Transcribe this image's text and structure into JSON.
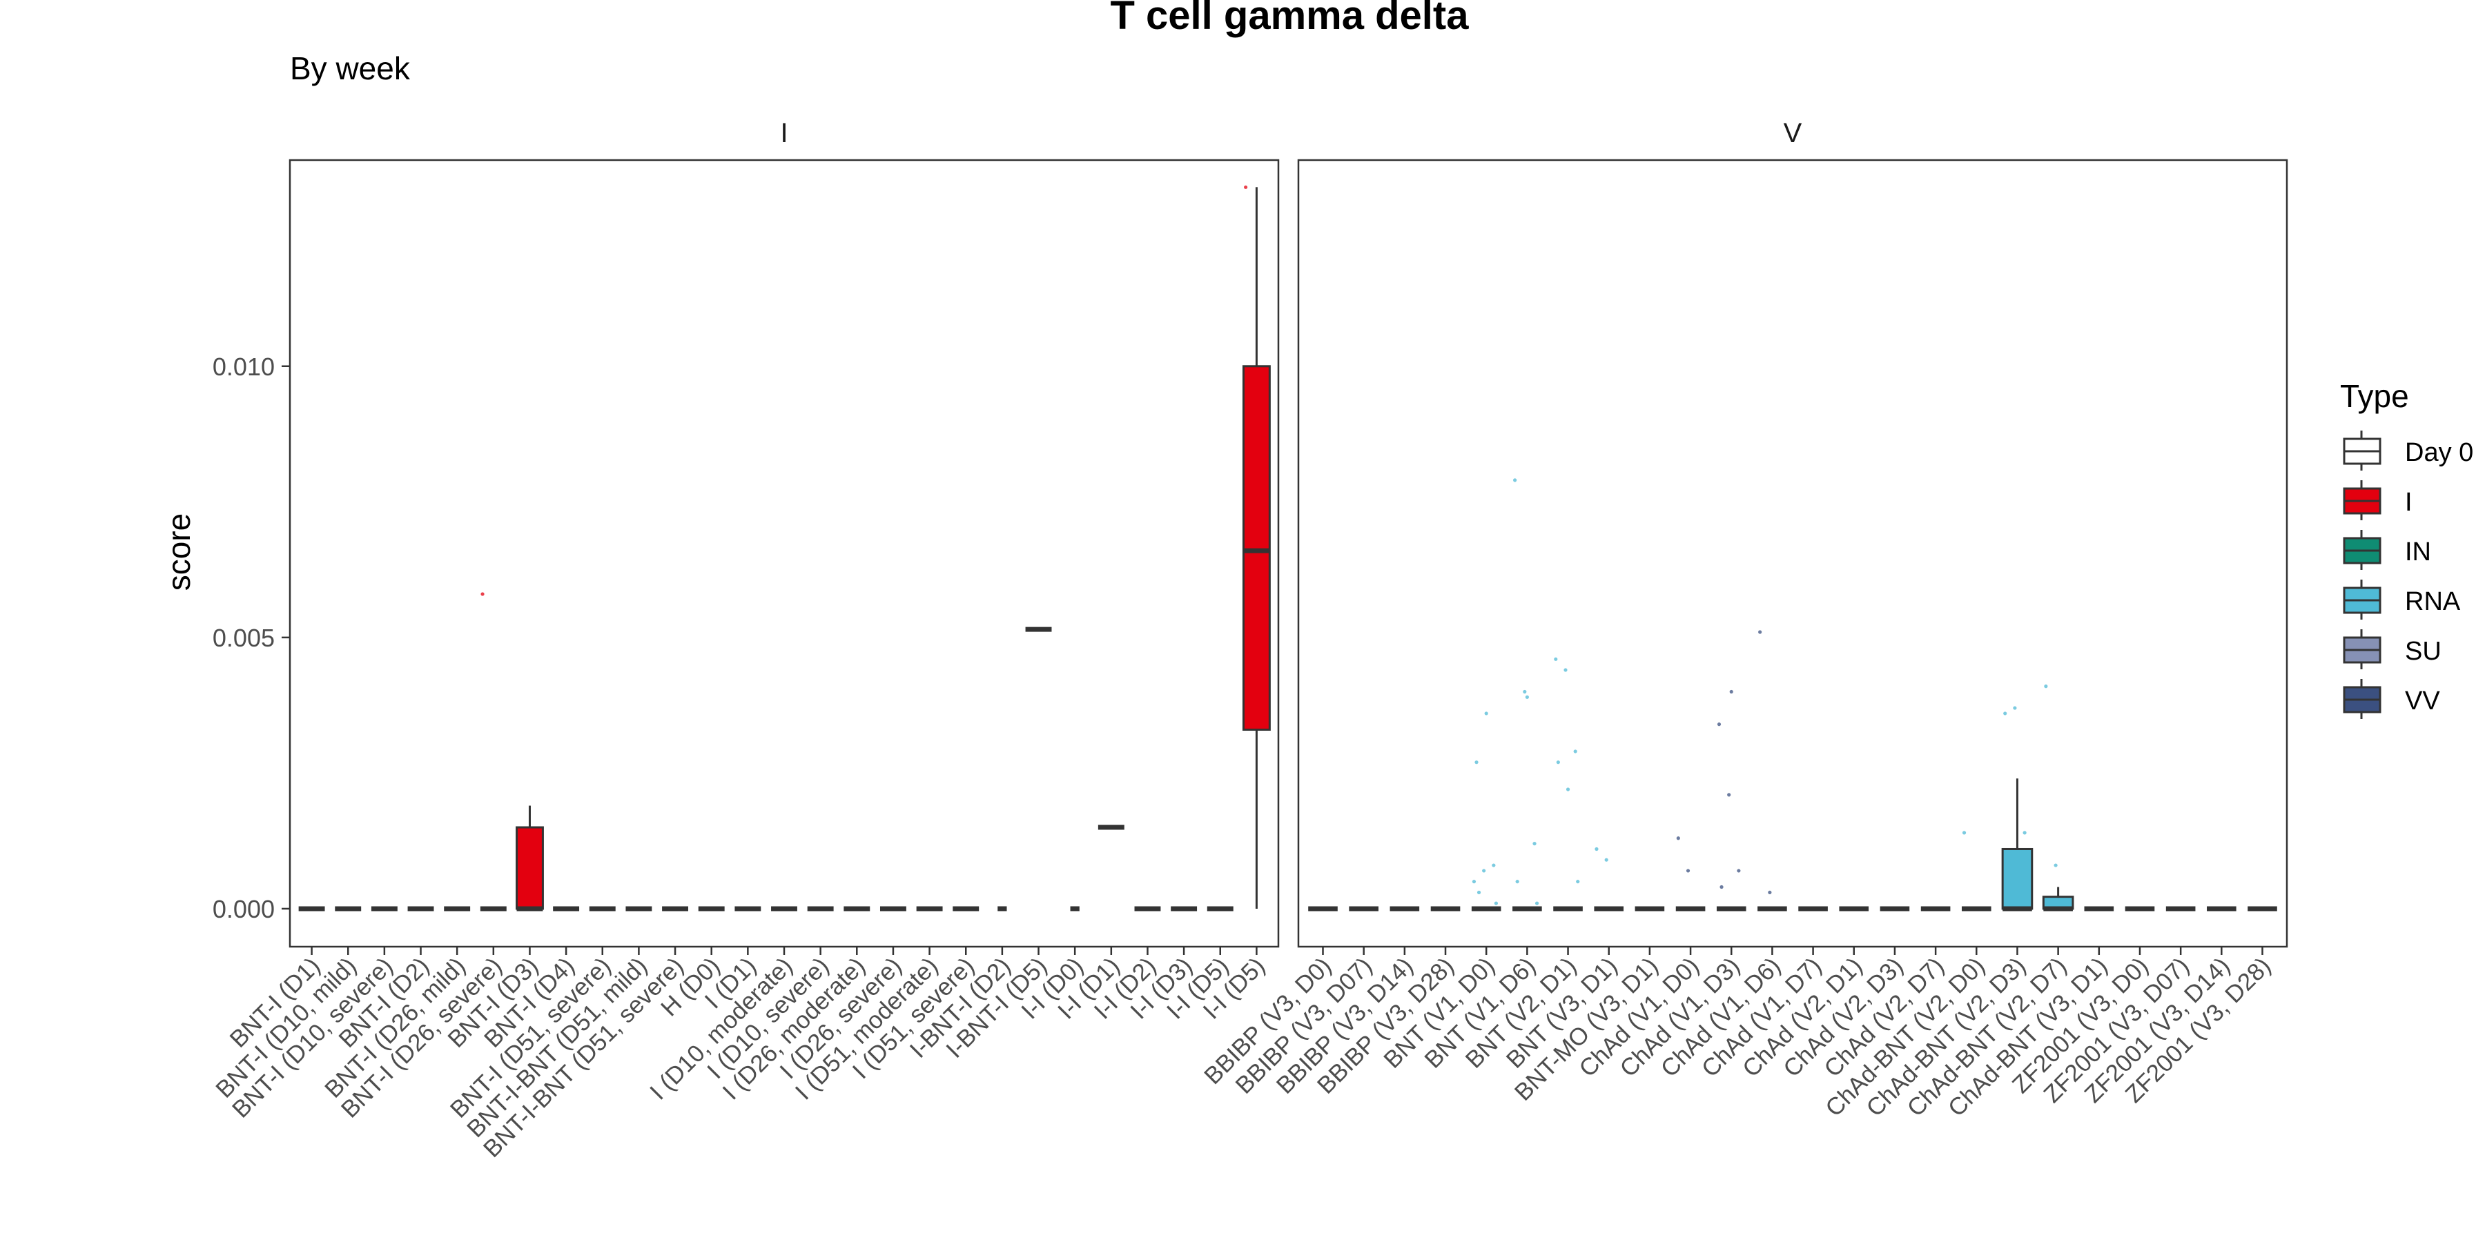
{
  "colors": {
    "Day 0": "#ffffff",
    "I": "#e3000f",
    "IN": "#0f8c73",
    "RNA": "#4fbad6",
    "SU": "#8691b5",
    "VV": "#3b5080"
  },
  "chart_data": {
    "type": "box",
    "title": "T cell gamma delta",
    "subtitle": "By week",
    "ylabel": "score",
    "xlabel": "",
    "ylim": [
      -0.0007,
      0.0138
    ],
    "yticks": [
      0.0,
      0.005,
      0.01
    ],
    "ytick_labels": [
      "0.000",
      "0.005",
      "0.010"
    ],
    "grid": false,
    "legend": {
      "title": "Type",
      "position": "right",
      "entries": [
        "Day 0",
        "I",
        "IN",
        "RNA",
        "SU",
        "VV"
      ]
    },
    "panels": [
      {
        "strip": "I",
        "categories": [
          {
            "label": "BNT-I (D1)",
            "type": "I",
            "q1": 0,
            "median": 0,
            "q3": 0,
            "whisker_low": 0,
            "whisker_high": 0,
            "outliers": []
          },
          {
            "label": "BNT-I (D10, mild)",
            "type": "I",
            "q1": 0,
            "median": 0,
            "q3": 0,
            "whisker_low": 0,
            "whisker_high": 0,
            "outliers": []
          },
          {
            "label": "BNT-I (D10, severe)",
            "type": "I",
            "q1": 0,
            "median": 0,
            "q3": 0,
            "whisker_low": 0,
            "whisker_high": 0,
            "outliers": []
          },
          {
            "label": "BNT-I (D2)",
            "type": "I",
            "q1": 0,
            "median": 0,
            "q3": 0,
            "whisker_low": 0,
            "whisker_high": 0,
            "outliers": []
          },
          {
            "label": "BNT-I (D26, mild)",
            "type": "I",
            "q1": 0,
            "median": 0,
            "q3": 0,
            "whisker_low": 0,
            "whisker_high": 0,
            "outliers": []
          },
          {
            "label": "BNT-I (D26, severe)",
            "type": "I",
            "q1": 0,
            "median": 0,
            "q3": 0,
            "whisker_low": 0,
            "whisker_high": 0,
            "outliers": [
              0.0058
            ]
          },
          {
            "label": "BNT-I (D3)",
            "type": "I",
            "q1": 0,
            "median": 0,
            "q3": 0.0015,
            "whisker_low": 0,
            "whisker_high": 0.0019,
            "outliers": []
          },
          {
            "label": "BNT-I (D4)",
            "type": "I",
            "q1": 0,
            "median": 0,
            "q3": 0,
            "whisker_low": 0,
            "whisker_high": 0,
            "outliers": []
          },
          {
            "label": "BNT-I (D51, severe)",
            "type": "I",
            "q1": 0,
            "median": 0,
            "q3": 0,
            "whisker_low": 0,
            "whisker_high": 0,
            "outliers": []
          },
          {
            "label": "BNT-I-BNT (D51, mild)",
            "type": "I",
            "q1": 0,
            "median": 0,
            "q3": 0,
            "whisker_low": 0,
            "whisker_high": 0,
            "outliers": []
          },
          {
            "label": "BNT-I-BNT (D51, severe)",
            "type": "I",
            "q1": 0,
            "median": 0,
            "q3": 0,
            "whisker_low": 0,
            "whisker_high": 0,
            "outliers": []
          },
          {
            "label": "H (D0)",
            "type": "I",
            "q1": 0,
            "median": 0,
            "q3": 0,
            "whisker_low": 0,
            "whisker_high": 0,
            "outliers": []
          },
          {
            "label": "I (D1)",
            "type": "I",
            "q1": 0,
            "median": 0,
            "q3": 0,
            "whisker_low": 0,
            "whisker_high": 0,
            "outliers": []
          },
          {
            "label": "I (D10, moderate)",
            "type": "I",
            "q1": 0,
            "median": 0,
            "q3": 0,
            "whisker_low": 0,
            "whisker_high": 0,
            "outliers": []
          },
          {
            "label": "I (D10, severe)",
            "type": "I",
            "q1": 0,
            "median": 0,
            "q3": 0,
            "whisker_low": 0,
            "whisker_high": 0,
            "outliers": []
          },
          {
            "label": "I (D26, moderate)",
            "type": "I",
            "q1": 0,
            "median": 0,
            "q3": 0,
            "whisker_low": 0,
            "whisker_high": 0,
            "outliers": []
          },
          {
            "label": "I (D26, severe)",
            "type": "I",
            "q1": 0,
            "median": 0,
            "q3": 0,
            "whisker_low": 0,
            "whisker_high": 0,
            "outliers": []
          },
          {
            "label": "I (D51, moderate)",
            "type": "I",
            "q1": 0,
            "median": 0,
            "q3": 0,
            "whisker_low": 0,
            "whisker_high": 0,
            "outliers": []
          },
          {
            "label": "I (D51, severe)",
            "type": "I",
            "q1": 0,
            "median": 0,
            "q3": 0,
            "whisker_low": 0,
            "whisker_high": 0,
            "outliers": []
          },
          {
            "label": "I-BNT-I (D2)",
            "type": "I",
            "q1": 0,
            "median": 0,
            "q3": 0,
            "whisker_low": 0,
            "whisker_high": 0,
            "outliers": [],
            "short": true
          },
          {
            "label": "I-BNT-I (D5)",
            "type": "I",
            "q1": 0.00515,
            "median": 0.00515,
            "q3": 0.00515,
            "whisker_low": 0.00515,
            "whisker_high": 0.00515,
            "outliers": []
          },
          {
            "label": "I-I (D0)",
            "type": "I",
            "q1": 0,
            "median": 0,
            "q3": 0,
            "whisker_low": 0,
            "whisker_high": 0,
            "outliers": [],
            "short": true
          },
          {
            "label": "I-I (D1)",
            "type": "I",
            "q1": 0.0015,
            "median": 0.0015,
            "q3": 0.0015,
            "whisker_low": 0.0015,
            "whisker_high": 0.0015,
            "outliers": []
          },
          {
            "label": "I-I (D2)",
            "type": "I",
            "q1": 0,
            "median": 0,
            "q3": 0,
            "whisker_low": 0,
            "whisker_high": 0,
            "outliers": []
          },
          {
            "label": "I-I (D3)",
            "type": "I",
            "q1": 0,
            "median": 0,
            "q3": 0,
            "whisker_low": 0,
            "whisker_high": 0,
            "outliers": []
          },
          {
            "label": "I-I (D5)",
            "type": "I",
            "q1": 0,
            "median": 0,
            "q3": 0,
            "whisker_low": 0,
            "whisker_high": 0,
            "outliers": []
          },
          {
            "label": "I-I (D5)",
            "type": "I",
            "q1": 0.0033,
            "median": 0.0066,
            "q3": 0.01,
            "whisker_low": 0,
            "whisker_high": 0.0133,
            "outliers": [
              0.0133
            ]
          }
        ]
      },
      {
        "strip": "V",
        "categories": [
          {
            "label": "BBIBP (V3, D0)",
            "type": "VV",
            "q1": 0,
            "median": 0,
            "q3": 0,
            "whisker_low": 0,
            "whisker_high": 0,
            "outliers": []
          },
          {
            "label": "BBIBP (V3, D07)",
            "type": "VV",
            "q1": 0,
            "median": 0,
            "q3": 0,
            "whisker_low": 0,
            "whisker_high": 0,
            "outliers": []
          },
          {
            "label": "BBIBP (V3, D14)",
            "type": "VV",
            "q1": 0,
            "median": 0,
            "q3": 0,
            "whisker_low": 0,
            "whisker_high": 0,
            "outliers": []
          },
          {
            "label": "BBIBP (V3, D28)",
            "type": "VV",
            "q1": 0,
            "median": 0,
            "q3": 0,
            "whisker_low": 0,
            "whisker_high": 0,
            "outliers": []
          },
          {
            "label": "BNT (V1, D0)",
            "type": "RNA",
            "q1": 0,
            "median": 0,
            "q3": 0,
            "whisker_low": 0,
            "whisker_high": 0,
            "outliers": [
              0.0005,
              0.0007,
              0.0008,
              0.0027,
              0.0036,
              0.0001,
              0.0003
            ]
          },
          {
            "label": "BNT (V1, D6)",
            "type": "RNA",
            "q1": 0,
            "median": 0,
            "q3": 0,
            "whisker_low": 0,
            "whisker_high": 0,
            "outliers": [
              0.0079,
              0.004,
              0.0012,
              0.0005,
              0.0039,
              0.0001
            ]
          },
          {
            "label": "BNT (V2, D1)",
            "type": "RNA",
            "q1": 0,
            "median": 0,
            "q3": 0,
            "whisker_low": 0,
            "whisker_high": 0,
            "outliers": [
              0.0046,
              0.0044,
              0.0029,
              0.0027,
              0.0022,
              0.0005
            ]
          },
          {
            "label": "BNT (V3, D1)",
            "type": "RNA",
            "q1": 0,
            "median": 0,
            "q3": 0,
            "whisker_low": 0,
            "whisker_high": 0,
            "outliers": [
              0.0011,
              0.0009
            ]
          },
          {
            "label": "BNT-MO (V3, D1)",
            "type": "RNA",
            "q1": 0,
            "median": 0,
            "q3": 0,
            "whisker_low": 0,
            "whisker_high": 0,
            "outliers": []
          },
          {
            "label": "ChAd (V1, D0)",
            "type": "VV",
            "q1": 0,
            "median": 0,
            "q3": 0,
            "whisker_low": 0,
            "whisker_high": 0,
            "outliers": [
              0.0013,
              0.0007
            ]
          },
          {
            "label": "ChAd (V1, D3)",
            "type": "VV",
            "q1": 0,
            "median": 0,
            "q3": 0,
            "whisker_low": 0,
            "whisker_high": 0,
            "outliers": [
              0.0034,
              0.0021,
              0.0007,
              0.0004,
              0.004
            ]
          },
          {
            "label": "ChAd (V1, D6)",
            "type": "VV",
            "q1": 0,
            "median": 0,
            "q3": 0,
            "whisker_low": 0,
            "whisker_high": 0,
            "outliers": [
              0.0051,
              0.0003
            ]
          },
          {
            "label": "ChAd (V1, D7)",
            "type": "VV",
            "q1": 0,
            "median": 0,
            "q3": 0,
            "whisker_low": 0,
            "whisker_high": 0,
            "outliers": []
          },
          {
            "label": "ChAd (V2, D1)",
            "type": "VV",
            "q1": 0,
            "median": 0,
            "q3": 0,
            "whisker_low": 0,
            "whisker_high": 0,
            "outliers": []
          },
          {
            "label": "ChAd (V2, D3)",
            "type": "VV",
            "q1": 0,
            "median": 0,
            "q3": 0,
            "whisker_low": 0,
            "whisker_high": 0,
            "outliers": []
          },
          {
            "label": "ChAd (V2, D7)",
            "type": "VV",
            "q1": 0,
            "median": 0,
            "q3": 0,
            "whisker_low": 0,
            "whisker_high": 0,
            "outliers": []
          },
          {
            "label": "ChAd-BNT (V2, D0)",
            "type": "RNA",
            "q1": 0,
            "median": 0,
            "q3": 0,
            "whisker_low": 0,
            "whisker_high": 0,
            "outliers": [
              0.0014
            ]
          },
          {
            "label": "ChAd-BNT (V2, D3)",
            "type": "RNA",
            "q1": 0,
            "median": 0,
            "q3": 0.0011,
            "whisker_low": 0,
            "whisker_high": 0.0024,
            "outliers": [
              0.0036,
              0.0037,
              0.0014
            ]
          },
          {
            "label": "ChAd-BNT (V2, D7)",
            "type": "RNA",
            "q1": 0,
            "median": 0,
            "q3": 0.00022,
            "whisker_low": 0,
            "whisker_high": 0.0004,
            "outliers": [
              0.0041,
              0.0008
            ]
          },
          {
            "label": "ChAd-BNT (V3, D1)",
            "type": "RNA",
            "q1": 0,
            "median": 0,
            "q3": 0,
            "whisker_low": 0,
            "whisker_high": 0,
            "outliers": []
          },
          {
            "label": "ZF2001 (V3, D0)",
            "type": "SU",
            "q1": 0,
            "median": 0,
            "q3": 0,
            "whisker_low": 0,
            "whisker_high": 0,
            "outliers": []
          },
          {
            "label": "ZF2001 (V3, D07)",
            "type": "SU",
            "q1": 0,
            "median": 0,
            "q3": 0,
            "whisker_low": 0,
            "whisker_high": 0,
            "outliers": []
          },
          {
            "label": "ZF2001 (V3, D14)",
            "type": "SU",
            "q1": 0,
            "median": 0,
            "q3": 0,
            "whisker_low": 0,
            "whisker_high": 0,
            "outliers": []
          },
          {
            "label": "ZF2001 (V3, D28)",
            "type": "SU",
            "q1": 0,
            "median": 0,
            "q3": 0,
            "whisker_low": 0,
            "whisker_high": 0,
            "outliers": []
          }
        ]
      }
    ]
  }
}
